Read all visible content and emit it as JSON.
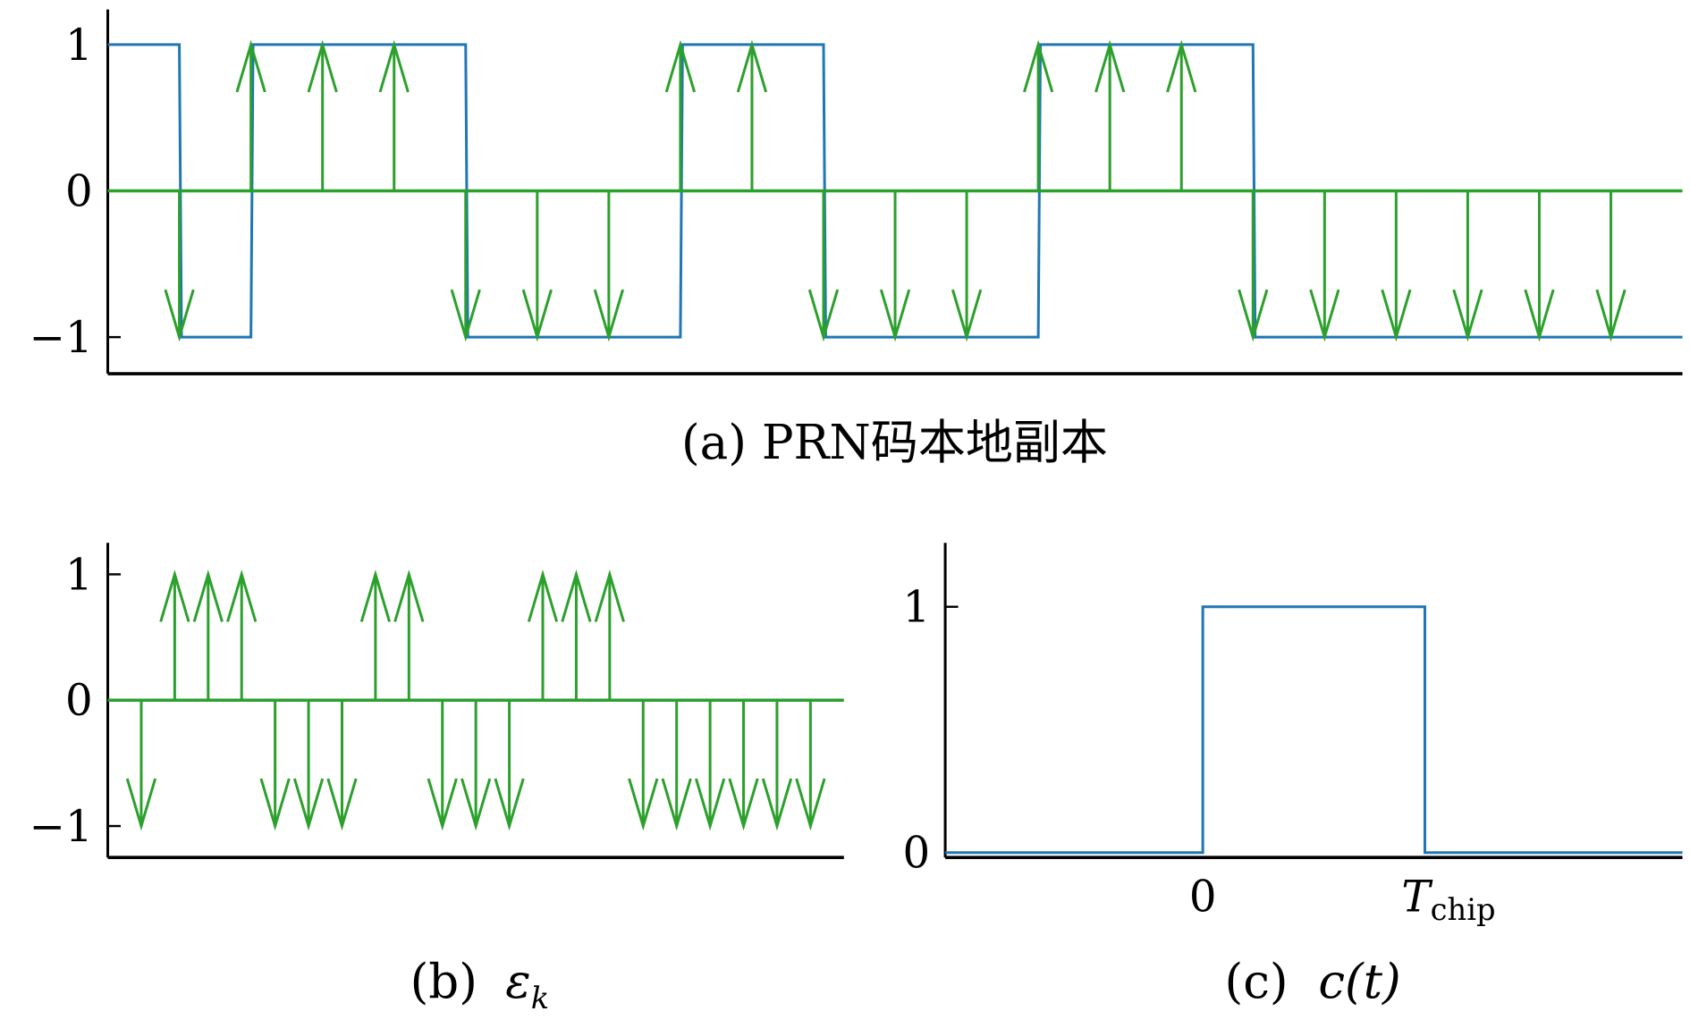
{
  "colors": {
    "code": "#1f77b4",
    "arrows": "#2ca02c",
    "axis": "#000000"
  },
  "chart_data": [
    {
      "type": "line",
      "caption": "(a) PRN码本地副本",
      "xlim": [
        0,
        22
      ],
      "ylim": [
        -1.25,
        1.24
      ],
      "yticks": [
        1,
        0,
        -1
      ],
      "ytick_labels": [
        "1",
        "0",
        "−1"
      ],
      "grid": false,
      "step_series": {
        "chip_values": [
          1,
          -1,
          1,
          1,
          1,
          -1,
          -1,
          -1,
          1,
          1,
          -1,
          -1,
          -1,
          1,
          1,
          1,
          -1,
          -1,
          -1,
          -1,
          -1,
          -1
        ],
        "chip_width": 1
      },
      "impulses": {
        "k": [
          1,
          2,
          3,
          4,
          5,
          6,
          7,
          8,
          9,
          10,
          11,
          12,
          13,
          14,
          15,
          16,
          17,
          18,
          19,
          20,
          21
        ],
        "values": [
          -1,
          1,
          1,
          1,
          -1,
          -1,
          -1,
          1,
          1,
          -1,
          -1,
          -1,
          1,
          1,
          1,
          -1,
          -1,
          -1,
          -1,
          -1,
          -1
        ]
      }
    },
    {
      "type": "stem",
      "caption_prefix": "(b)",
      "caption_symbol": "ε",
      "caption_sub": "k",
      "xlim": [
        0,
        22
      ],
      "ylim": [
        -1.25,
        1.25
      ],
      "yticks": [
        1,
        0,
        -1
      ],
      "ytick_labels": [
        "1",
        "0",
        "−1"
      ],
      "grid": false,
      "impulses": {
        "k": [
          1,
          2,
          3,
          4,
          5,
          6,
          7,
          8,
          9,
          10,
          11,
          12,
          13,
          14,
          15,
          16,
          17,
          18,
          19,
          20,
          21
        ],
        "values": [
          -1,
          1,
          1,
          1,
          -1,
          -1,
          -1,
          1,
          1,
          -1,
          -1,
          -1,
          1,
          1,
          1,
          -1,
          -1,
          -1,
          -1,
          -1,
          -1
        ]
      }
    },
    {
      "type": "line",
      "caption_prefix": "(c)",
      "caption_func": "c(t)",
      "xlim": [
        -1.16,
        2.16
      ],
      "ylim": [
        -0.02,
        1.26
      ],
      "xticks": [
        0,
        1
      ],
      "xtick_labels": [
        "0",
        "T"
      ],
      "xtick_sub": "chip",
      "yticks": [
        1,
        0
      ],
      "ytick_labels": [
        "1",
        "0"
      ],
      "grid": false,
      "x": [
        -1.16,
        0,
        0,
        1,
        1,
        2.16
      ],
      "y": [
        0,
        0,
        1,
        1,
        0,
        0
      ]
    }
  ]
}
